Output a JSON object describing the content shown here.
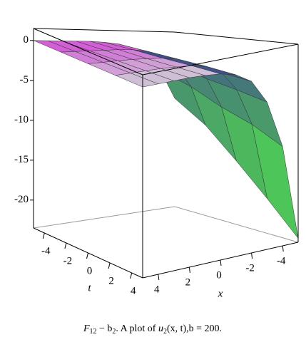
{
  "chart_data": {
    "type": "surface",
    "caption": [
      "F",
      "12",
      " − b",
      "2",
      ". A plot of ",
      "u",
      "2",
      "(x, t),b = 200."
    ],
    "x_label": "x",
    "t_label": "t",
    "x": [
      5,
      4,
      3,
      2,
      1,
      0,
      -1,
      -2,
      -3,
      -4,
      -5
    ],
    "t": [
      -5,
      -2.5,
      0,
      2.5,
      5
    ],
    "z": [
      [
        0,
        0,
        0,
        0,
        0,
        -0.1,
        -0.3,
        -0.8,
        -2,
        -4,
        -8
      ],
      [
        0,
        0,
        0,
        0,
        0,
        -0.1,
        -0.4,
        -1,
        -2.5,
        -5.5,
        -11
      ],
      [
        0,
        0,
        0,
        0,
        -0.1,
        -0.2,
        -0.5,
        -1.4,
        -3.5,
        -7.5,
        -15
      ],
      [
        0,
        0,
        0,
        0,
        -0.1,
        -0.2,
        -0.6,
        -1.7,
        -4.2,
        -9,
        -19
      ],
      [
        0,
        0,
        0,
        0,
        -0.1,
        -0.3,
        -0.8,
        -2,
        -5,
        -11,
        -23
      ]
    ],
    "xlim": [
      5,
      -5
    ],
    "tlim": [
      -5,
      5
    ],
    "zlim": [
      -23.5,
      1.5
    ],
    "xticks": [
      4,
      2,
      0,
      -2,
      -4
    ],
    "tticks": [
      -4,
      -2,
      0,
      2,
      4
    ],
    "zticks": [
      0,
      -5,
      -10,
      -15,
      -20
    ],
    "colormap": [
      "#d24fd6",
      "#cfcfd6",
      "#3d3a94",
      "#52e24c"
    ]
  }
}
